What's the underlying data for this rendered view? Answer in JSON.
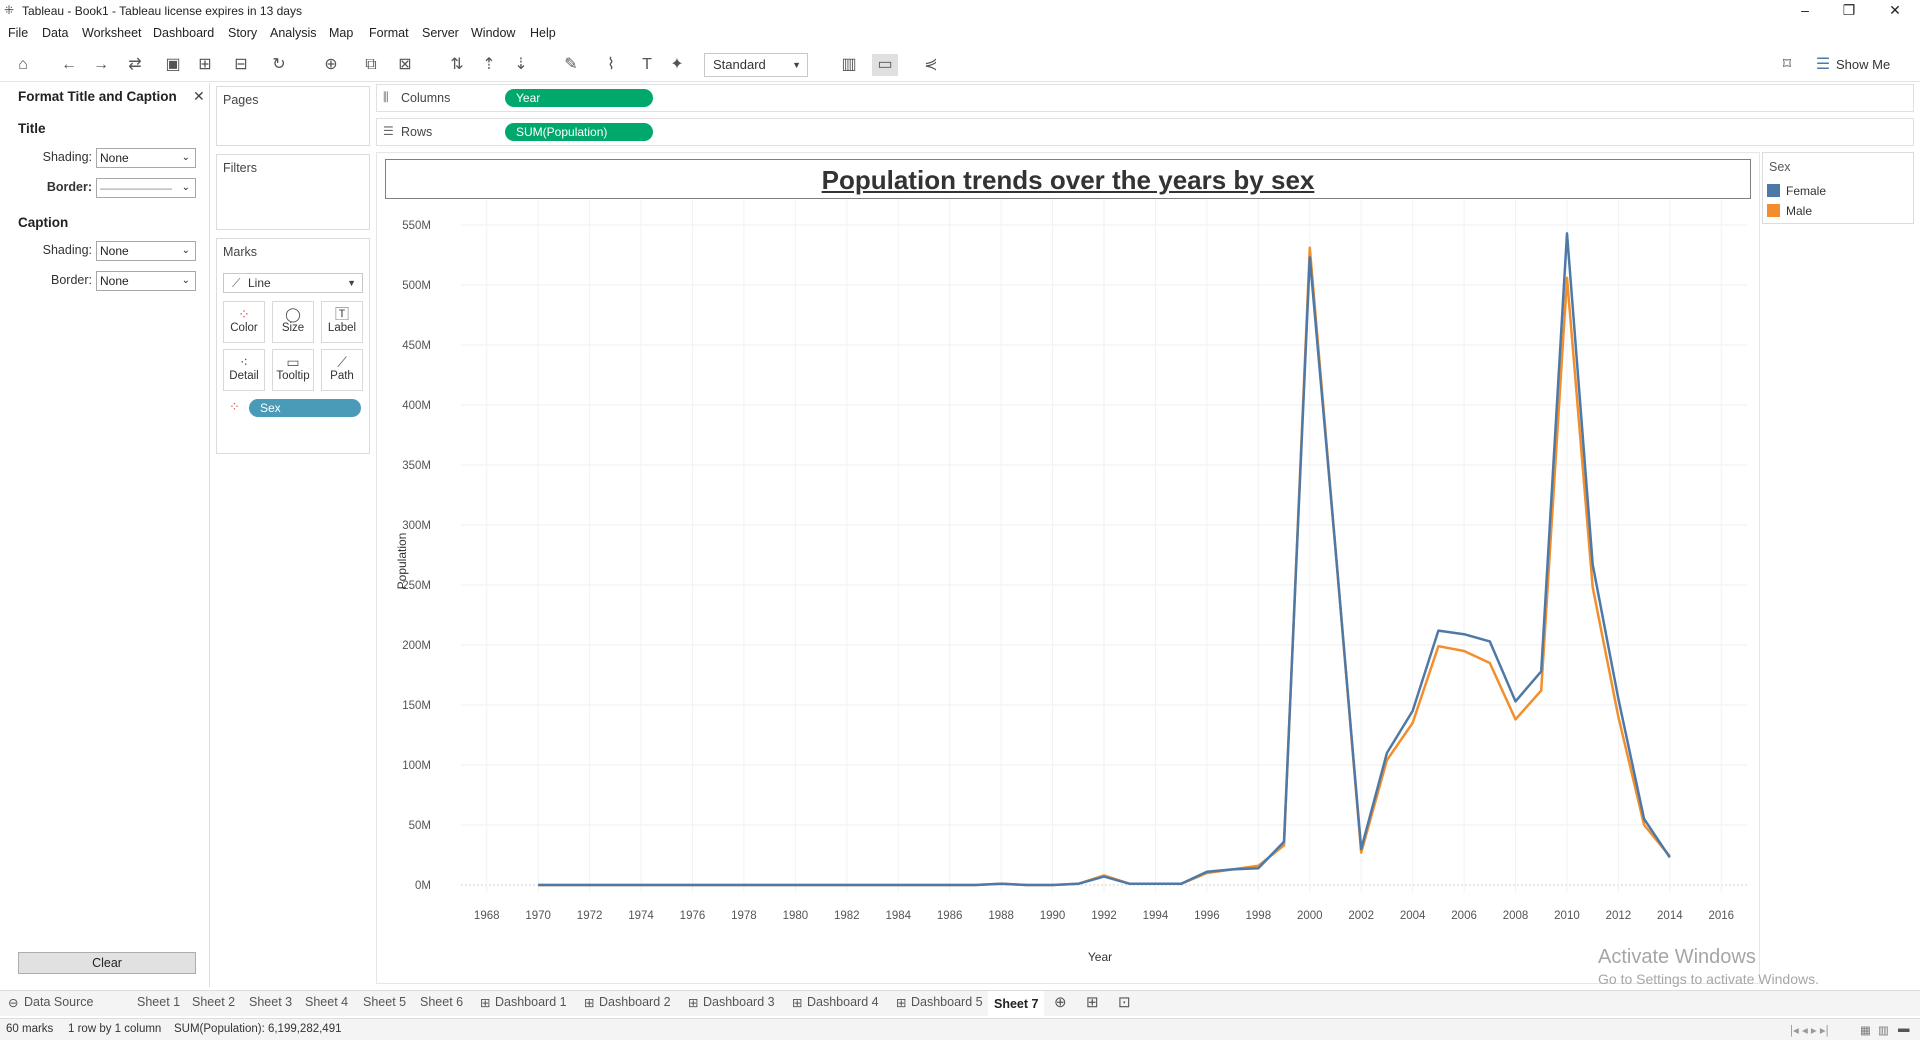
{
  "window": {
    "title": "Tableau - Book1 - Tableau license expires in 13 days",
    "minimize": "–",
    "restore": "❐",
    "close": "✕"
  },
  "menu": [
    "File",
    "Data",
    "Worksheet",
    "Dashboard",
    "Story",
    "Analysis",
    "Map",
    "Format",
    "Server",
    "Window",
    "Help"
  ],
  "toolbar": {
    "fit_value": "Standard",
    "show_me": "Show Me"
  },
  "format_panel": {
    "header": "Format Title and Caption",
    "title_section": "Title",
    "caption_section": "Caption",
    "shading_label": "Shading:",
    "border_label": "Border:",
    "title_shading": "None",
    "title_border": "——————",
    "caption_shading": "None",
    "caption_border": "None",
    "clear": "Clear"
  },
  "cards": {
    "pages": "Pages",
    "filters": "Filters",
    "marks": "Marks",
    "mark_type": "Line",
    "buttons": [
      "Color",
      "Size",
      "Label",
      "Detail",
      "Tooltip",
      "Path"
    ],
    "sex_pill": "Sex"
  },
  "shelves": {
    "columns_label": "Columns",
    "rows_label": "Rows",
    "columns_pill": "Year",
    "rows_pill": "SUM(Population)"
  },
  "legend": {
    "title": "Sex",
    "items": [
      {
        "label": "Female",
        "color": "#4e79a7"
      },
      {
        "label": "Male",
        "color": "#f28e2b"
      }
    ]
  },
  "tabs": [
    "Data Source",
    "Sheet 1",
    "Sheet 2",
    "Sheet 3",
    "Sheet 4",
    "Sheet 5",
    "Sheet 6",
    "Dashboard 1",
    "Dashboard 2",
    "Dashboard 3",
    "Dashboard 4",
    "Dashboard 5",
    "Sheet 7"
  ],
  "active_tab": "Sheet 7",
  "status": {
    "marks": "60 marks",
    "layout": "1 row by 1 column",
    "sum": "SUM(Population): 6,199,282,491"
  },
  "watermark": {
    "line1": "Activate Windows",
    "line2": "Go to Settings to activate Windows."
  },
  "chart_data": {
    "type": "line",
    "title": "Population trends over the years by sex",
    "xlabel": "Year",
    "ylabel": "Population",
    "xlim": [
      1967,
      2017
    ],
    "ylim": [
      0,
      560
    ],
    "x_ticks": [
      1968,
      1970,
      1972,
      1974,
      1976,
      1978,
      1980,
      1982,
      1984,
      1986,
      1988,
      1990,
      1992,
      1994,
      1996,
      1998,
      2000,
      2002,
      2004,
      2006,
      2008,
      2010,
      2012,
      2014,
      2016
    ],
    "y_ticks": [
      0,
      50,
      100,
      150,
      200,
      250,
      300,
      350,
      400,
      450,
      500,
      550
    ],
    "y_tick_labels": [
      "0M",
      "50M",
      "100M",
      "150M",
      "200M",
      "250M",
      "300M",
      "350M",
      "400M",
      "450M",
      "500M",
      "550M"
    ],
    "x": [
      1970,
      1971,
      1972,
      1973,
      1974,
      1975,
      1976,
      1977,
      1978,
      1979,
      1980,
      1981,
      1982,
      1983,
      1984,
      1985,
      1986,
      1987,
      1988,
      1989,
      1990,
      1991,
      1992,
      1993,
      1994,
      1995,
      1996,
      1997,
      1998,
      1999,
      2000,
      2001,
      2002,
      2003,
      2004,
      2005,
      2006,
      2007,
      2008,
      2009,
      2010,
      2011,
      2012,
      2013,
      2014
    ],
    "series": [
      {
        "name": "Male",
        "color": "#f28e2b",
        "values": [
          0,
          0,
          0,
          0,
          0,
          0,
          0,
          0,
          0,
          0,
          0,
          0,
          0,
          0,
          0,
          0,
          0,
          0,
          1,
          0,
          0,
          1,
          8,
          1,
          1,
          1,
          10,
          13,
          16,
          33,
          531,
          280,
          27,
          104,
          135,
          199,
          195,
          185,
          138,
          162,
          506,
          248,
          140,
          50,
          24
        ]
      },
      {
        "name": "Female",
        "color": "#4e79a7",
        "values": [
          0,
          0,
          0,
          0,
          0,
          0,
          0,
          0,
          0,
          0,
          0,
          0,
          0,
          0,
          0,
          0,
          0,
          0,
          1,
          0,
          0,
          1,
          7,
          1,
          1,
          1,
          11,
          13,
          14,
          36,
          523,
          280,
          30,
          110,
          145,
          212,
          209,
          203,
          153,
          178,
          543,
          267,
          155,
          55,
          23
        ]
      }
    ],
    "grid": true,
    "legend": "right"
  }
}
